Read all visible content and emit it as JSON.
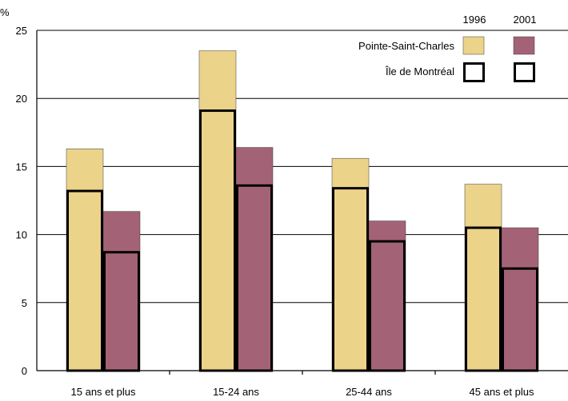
{
  "chart_data": {
    "type": "bar",
    "unit_label": "%",
    "categories": [
      "15 ans et plus",
      "15-24 ans",
      "25-44 ans",
      "45 ans et plus"
    ],
    "years": [
      "1996",
      "2001"
    ],
    "series": [
      {
        "name": "Pointe-Saint-Charles",
        "year": "1996",
        "values": [
          16.3,
          23.5,
          15.6,
          13.7
        ],
        "color": "#ecd38a"
      },
      {
        "name": "Pointe-Saint-Charles",
        "year": "2001",
        "values": [
          11.7,
          16.4,
          11.0,
          10.5
        ],
        "color": "#a46276"
      },
      {
        "name": "Île de Montréal",
        "year": "1996",
        "values": [
          13.2,
          19.1,
          13.4,
          10.5
        ],
        "style": "outline"
      },
      {
        "name": "Île de Montréal",
        "year": "2001",
        "values": [
          8.7,
          13.6,
          9.5,
          7.5
        ],
        "style": "outline"
      }
    ],
    "legend": {
      "labels": [
        "Pointe-Saint-Charles",
        "Île de Montréal"
      ],
      "placement": "top-right"
    },
    "ylim": [
      0,
      25
    ],
    "yticks": [
      0,
      5,
      10,
      15,
      20,
      25
    ],
    "grid": true
  }
}
